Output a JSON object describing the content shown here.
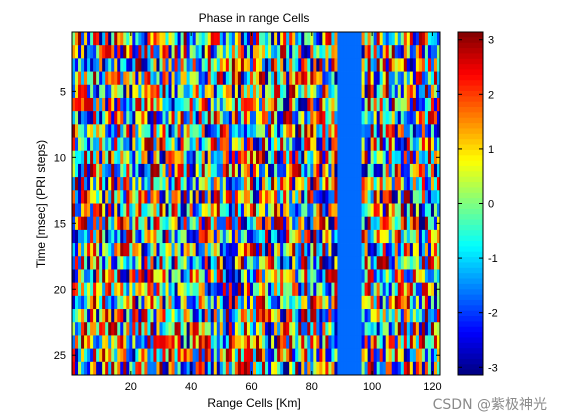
{
  "chart_data": {
    "type": "heatmap",
    "title": "Phase in range Cells",
    "xlabel": "Range Cells [Km]",
    "ylabel": "Time [msec] (PRI steps)",
    "x_range": [
      1,
      122
    ],
    "y_range": [
      1,
      26
    ],
    "x_ticks": [
      20,
      40,
      60,
      80,
      100,
      120
    ],
    "y_ticks": [
      5,
      10,
      15,
      20,
      25
    ],
    "colorbar": {
      "range": [
        -3.1416,
        3.1416
      ],
      "ticks": [
        3,
        2,
        1,
        0,
        -1,
        -2,
        -3
      ],
      "colormap": "jet"
    },
    "constant_band": {
      "x_start": 88.5,
      "x_end": 96.5,
      "value": -1.7
    },
    "cell_values": "random phase in [-3.14, 3.14] per range cell and PRI step",
    "grid": false
  },
  "watermark": "CSDN @紫极神光"
}
